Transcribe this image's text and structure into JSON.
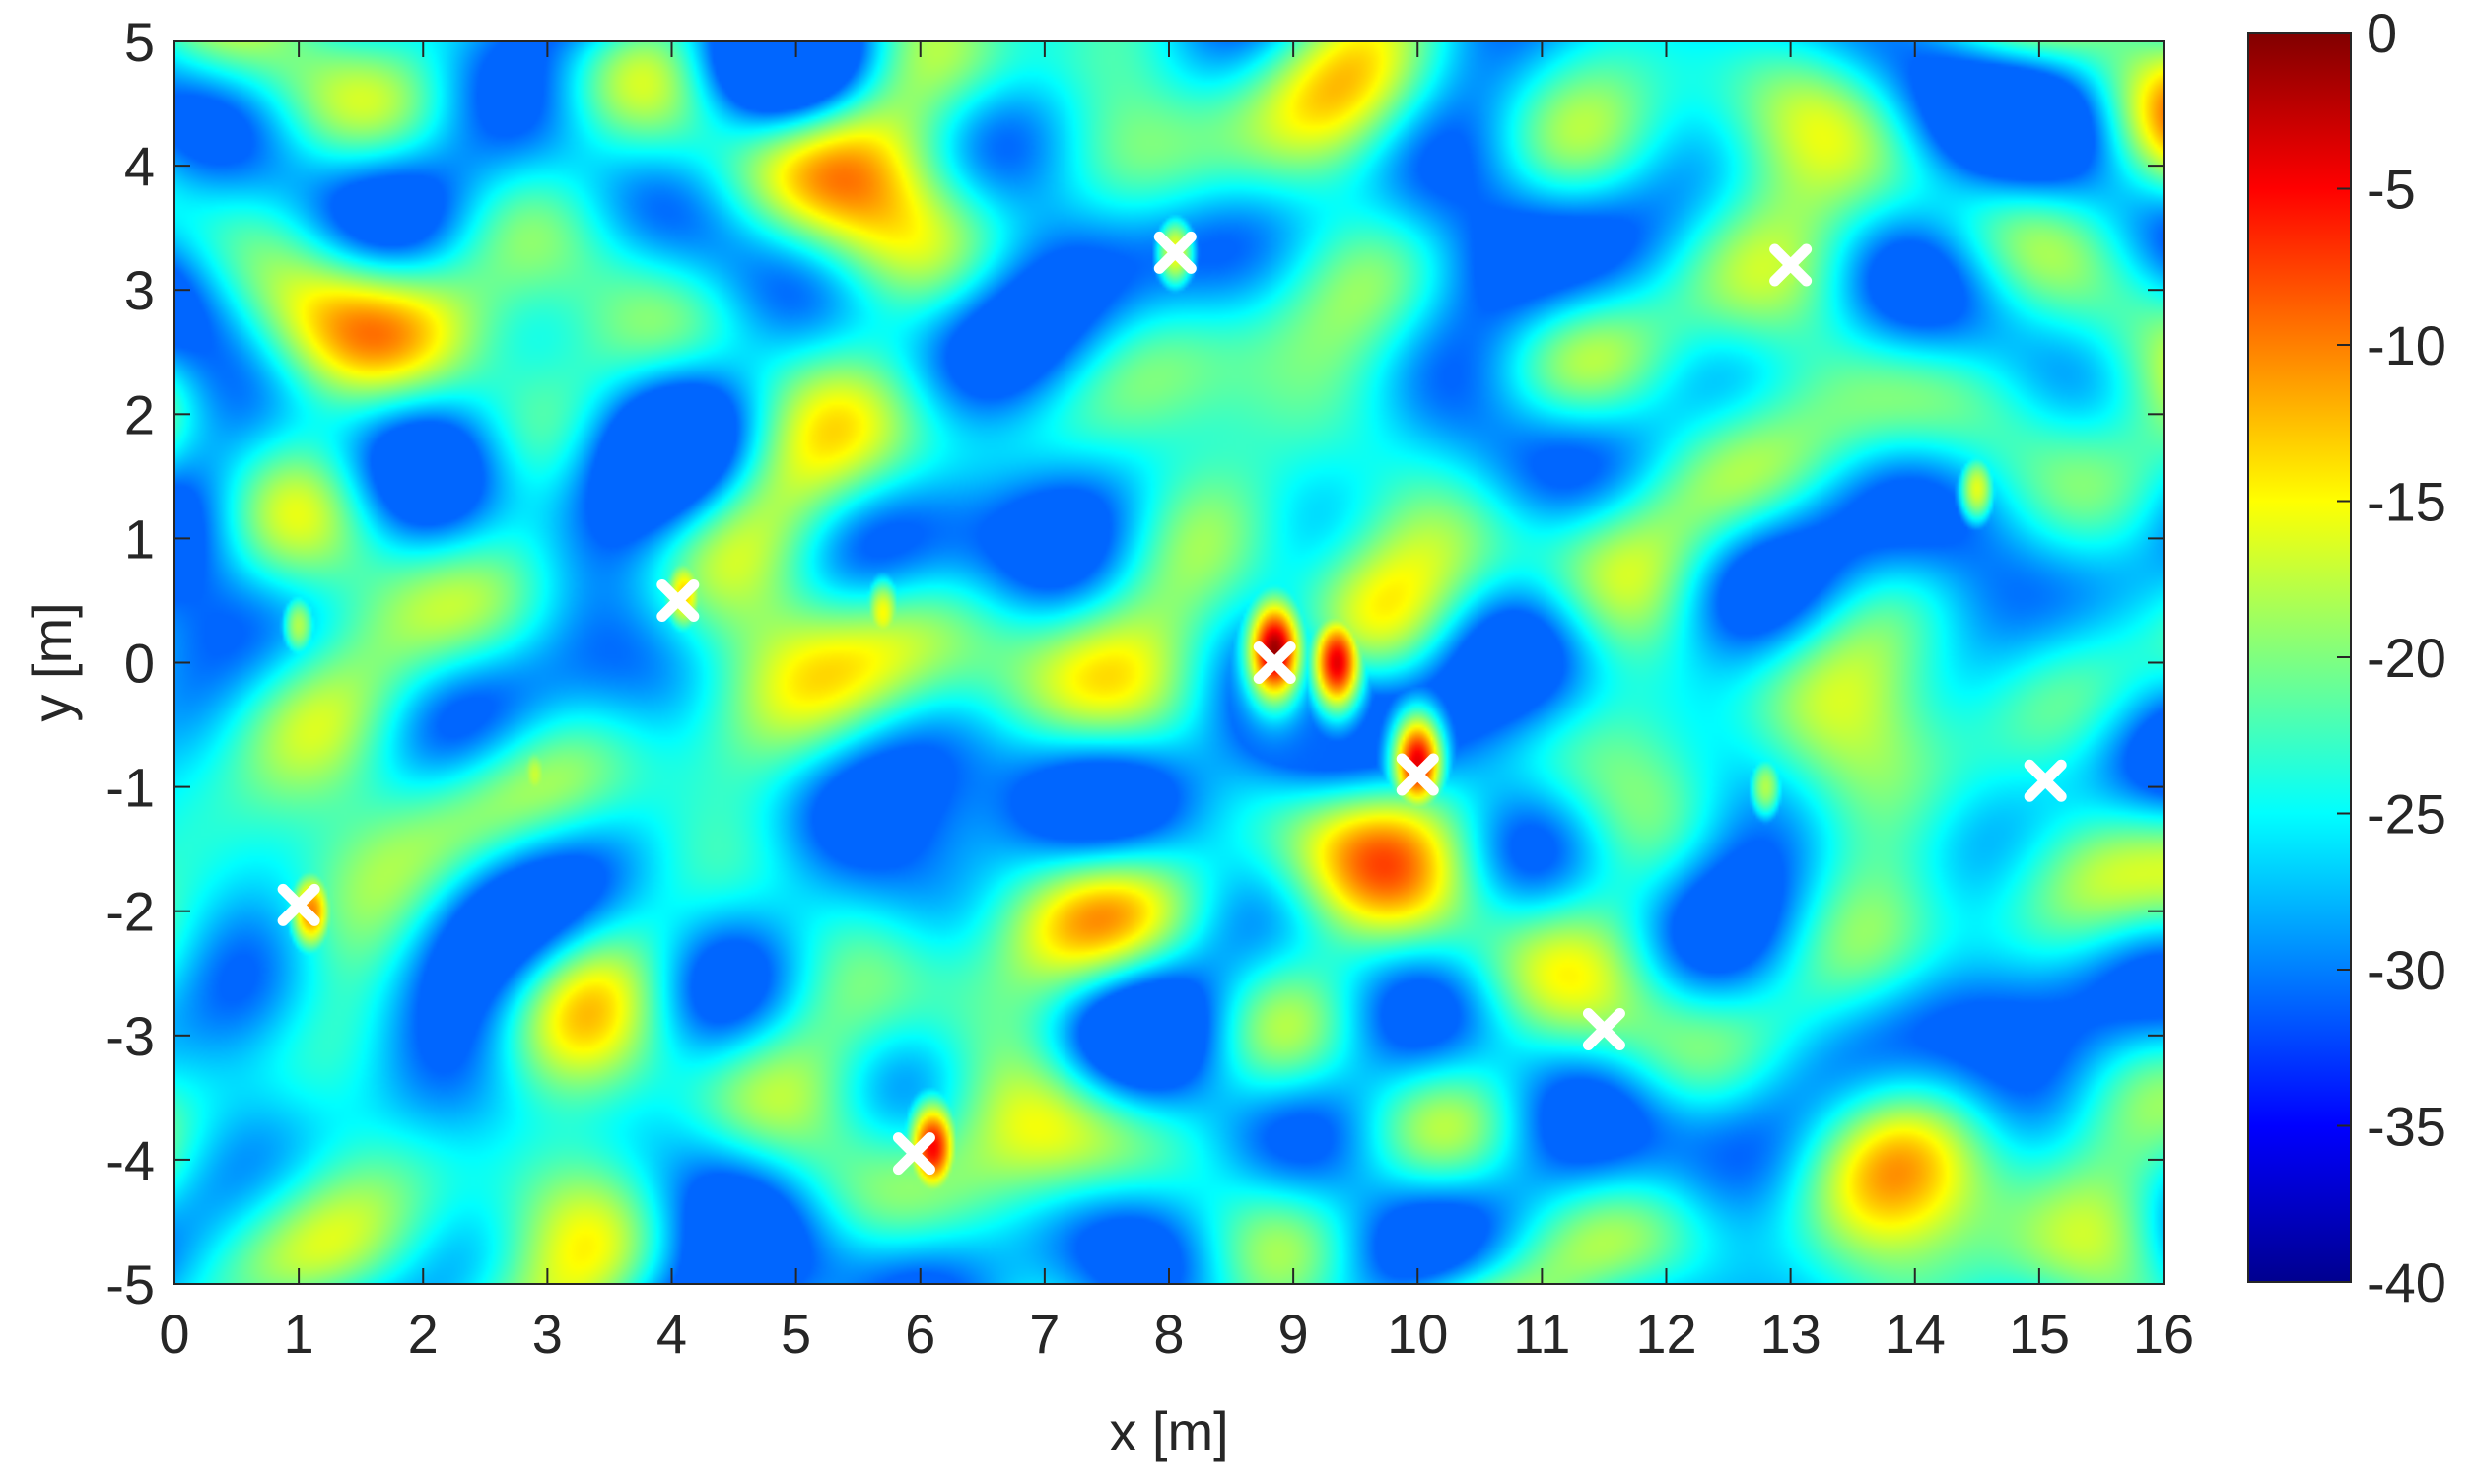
{
  "chart_data": {
    "type": "heatmap",
    "xlabel": "x [m]",
    "ylabel": "y [m]",
    "xlim": [
      0,
      16
    ],
    "ylim": [
      -5,
      5
    ],
    "x_ticks": [
      "0",
      "1",
      "2",
      "3",
      "4",
      "5",
      "6",
      "7",
      "8",
      "9",
      "10",
      "11",
      "12",
      "13",
      "14",
      "15",
      "16"
    ],
    "y_ticks": [
      "5",
      "4",
      "3",
      "2",
      "1",
      "0",
      "-1",
      "-2",
      "-3",
      "-4",
      "-5"
    ],
    "grid": false,
    "colormap": "jet",
    "colorbar": {
      "range": [
        -40,
        0
      ],
      "position": "right",
      "ticks": [
        "0",
        "-5",
        "-10",
        "-15",
        "-20",
        "-25",
        "-30",
        "-35",
        "-40"
      ]
    },
    "background_level_db": -25,
    "hotspots": [
      {
        "x": 8.85,
        "y": 0.1,
        "level_db": -1
      },
      {
        "x": 9.35,
        "y": 0.0,
        "level_db": -4
      },
      {
        "x": 10.0,
        "y": -0.8,
        "level_db": -4
      },
      {
        "x": 6.1,
        "y": -3.9,
        "level_db": -5
      },
      {
        "x": 1.1,
        "y": -2.0,
        "level_db": -10
      },
      {
        "x": 4.1,
        "y": 0.55,
        "level_db": -13
      },
      {
        "x": 8.05,
        "y": 3.3,
        "level_db": -15
      },
      {
        "x": 13.0,
        "y": 3.1,
        "level_db": -18
      },
      {
        "x": 5.7,
        "y": 0.4,
        "level_db": -15
      },
      {
        "x": 14.5,
        "y": 1.4,
        "level_db": -16
      },
      {
        "x": 1.0,
        "y": 0.3,
        "level_db": -18
      },
      {
        "x": 2.9,
        "y": -0.9,
        "level_db": -17
      },
      {
        "x": 12.8,
        "y": -1.0,
        "level_db": -18
      }
    ],
    "markers": [
      {
        "x": 1.0,
        "y": -1.95
      },
      {
        "x": 4.05,
        "y": 0.5
      },
      {
        "x": 5.95,
        "y": -3.95
      },
      {
        "x": 8.05,
        "y": 3.3
      },
      {
        "x": 8.85,
        "y": 0.0
      },
      {
        "x": 10.0,
        "y": -0.9
      },
      {
        "x": 11.5,
        "y": -2.95
      },
      {
        "x": 13.0,
        "y": 3.2
      },
      {
        "x": 15.05,
        "y": -0.95
      }
    ],
    "colors": {
      "axis": "#262626",
      "marker": "#ffffff"
    }
  }
}
